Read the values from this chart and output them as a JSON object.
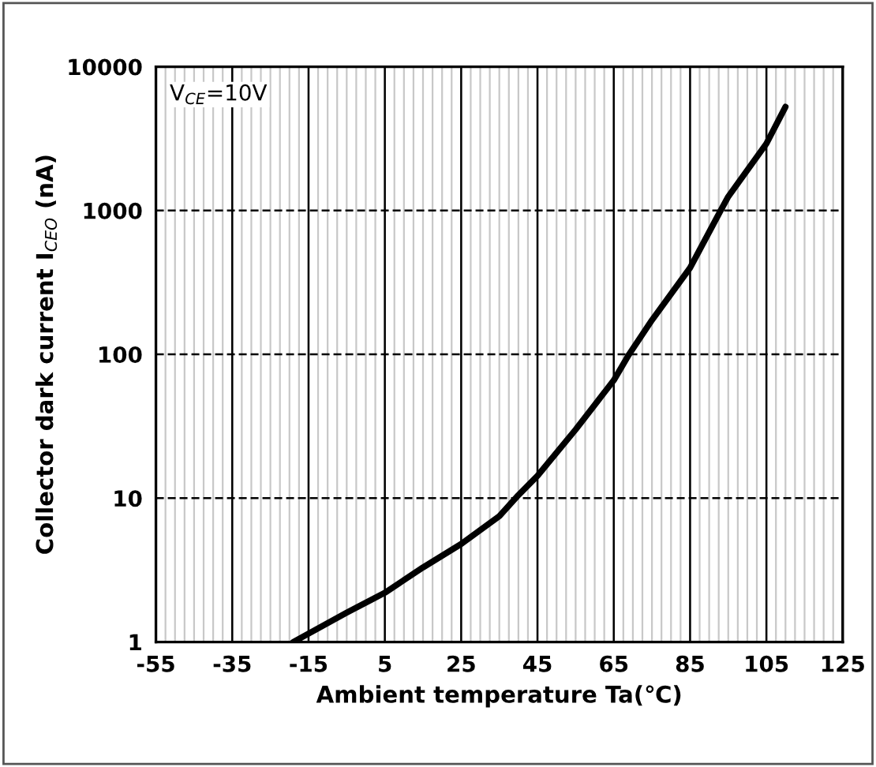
{
  "chart_data": {
    "type": "line",
    "xlabel": "Ambient temperature Ta(℃)",
    "ylabel": "Collector dark current I$_{CEO}$ (nA)",
    "annotations": [
      "V$_{CE}$=10V"
    ],
    "log": "y",
    "grid": true,
    "marker": "none",
    "line_style": "solid",
    "xlim": [
      -55,
      125
    ],
    "xticks": [
      -55,
      -35,
      -15,
      5,
      25,
      45,
      65,
      85,
      105,
      125
    ],
    "ylim": [
      1,
      10000
    ],
    "yticks": [
      1,
      10,
      100,
      1000,
      10000
    ],
    "series": [
      {
        "color": "#000000",
        "x": [
          -19,
          -5,
          5,
          15,
          25,
          35,
          40,
          45,
          55,
          65,
          69,
          75,
          85,
          93,
          95,
          105,
          110
        ],
        "values": [
          1,
          1.6,
          2.2,
          3.3,
          4.8,
          7.5,
          10.5,
          14.3,
          30,
          66,
          100,
          173,
          400,
          1000,
          1250,
          2920,
          5260
        ]
      }
    ]
  }
}
